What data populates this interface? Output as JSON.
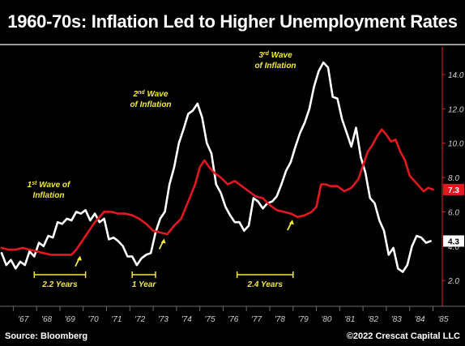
{
  "title": "1960-70s: Inflation Led to Higher Unemployment Rates",
  "footer": {
    "source": "Source: Bloomberg",
    "copyright": "©2022 Crescat Capital LLC"
  },
  "chart_data": {
    "type": "line",
    "x_labels": [
      "'67",
      "'68",
      "'69",
      "'70",
      "'71",
      "'72",
      "'73",
      "'74",
      "'75",
      "'76",
      "'77",
      "'78",
      "'79",
      "'80",
      "'81",
      "'82",
      "'83",
      "'84",
      "'85"
    ],
    "x_range": [
      1966.5,
      1985.4
    ],
    "y_ticks": [
      "2.0",
      "4.0",
      "6.0",
      "8.0",
      "10.0",
      "12.0",
      "14.0"
    ],
    "ylim": [
      0.5,
      15.6
    ],
    "series": [
      {
        "color": "#ffffff",
        "points": [
          [
            1966.5,
            3.6
          ],
          [
            1966.7,
            2.9
          ],
          [
            1966.9,
            3.2
          ],
          [
            1967.1,
            2.7
          ],
          [
            1967.3,
            3.1
          ],
          [
            1967.5,
            2.9
          ],
          [
            1967.7,
            3.7
          ],
          [
            1967.9,
            3.4
          ],
          [
            1968.1,
            4.2
          ],
          [
            1968.3,
            4.0
          ],
          [
            1968.5,
            4.6
          ],
          [
            1968.7,
            4.5
          ],
          [
            1968.9,
            5.4
          ],
          [
            1969.1,
            5.3
          ],
          [
            1969.3,
            5.6
          ],
          [
            1969.5,
            5.5
          ],
          [
            1969.7,
            6.0
          ],
          [
            1969.9,
            5.9
          ],
          [
            1970.1,
            6.1
          ],
          [
            1970.3,
            5.5
          ],
          [
            1970.5,
            5.9
          ],
          [
            1970.7,
            5.4
          ],
          [
            1970.9,
            5.6
          ],
          [
            1971.1,
            4.4
          ],
          [
            1971.3,
            4.5
          ],
          [
            1971.5,
            4.3
          ],
          [
            1971.7,
            4.0
          ],
          [
            1971.9,
            3.4
          ],
          [
            1972.1,
            3.4
          ],
          [
            1972.3,
            2.9
          ],
          [
            1972.5,
            3.3
          ],
          [
            1972.7,
            3.5
          ],
          [
            1972.9,
            3.6
          ],
          [
            1973.1,
            4.8
          ],
          [
            1973.3,
            5.6
          ],
          [
            1973.5,
            6.0
          ],
          [
            1973.7,
            7.6
          ],
          [
            1973.9,
            8.6
          ],
          [
            1974.1,
            10.0
          ],
          [
            1974.3,
            10.8
          ],
          [
            1974.5,
            11.7
          ],
          [
            1974.7,
            11.9
          ],
          [
            1974.9,
            12.3
          ],
          [
            1975.1,
            11.5
          ],
          [
            1975.3,
            10.0
          ],
          [
            1975.5,
            9.4
          ],
          [
            1975.7,
            7.6
          ],
          [
            1975.9,
            7.1
          ],
          [
            1976.1,
            6.3
          ],
          [
            1976.3,
            5.8
          ],
          [
            1976.5,
            5.4
          ],
          [
            1976.7,
            5.4
          ],
          [
            1976.9,
            4.9
          ],
          [
            1977.1,
            5.2
          ],
          [
            1977.3,
            6.8
          ],
          [
            1977.5,
            6.6
          ],
          [
            1977.7,
            6.2
          ],
          [
            1977.9,
            6.5
          ],
          [
            1978.1,
            6.6
          ],
          [
            1978.3,
            6.9
          ],
          [
            1978.5,
            7.6
          ],
          [
            1978.7,
            8.4
          ],
          [
            1978.9,
            8.9
          ],
          [
            1979.1,
            9.8
          ],
          [
            1979.3,
            10.6
          ],
          [
            1979.5,
            11.2
          ],
          [
            1979.7,
            12.0
          ],
          [
            1979.9,
            13.3
          ],
          [
            1980.1,
            14.2
          ],
          [
            1980.3,
            14.7
          ],
          [
            1980.5,
            14.4
          ],
          [
            1980.7,
            12.7
          ],
          [
            1980.9,
            12.6
          ],
          [
            1981.1,
            11.4
          ],
          [
            1981.3,
            10.6
          ],
          [
            1981.5,
            9.8
          ],
          [
            1981.7,
            10.9
          ],
          [
            1981.9,
            9.2
          ],
          [
            1982.1,
            8.3
          ],
          [
            1982.3,
            6.8
          ],
          [
            1982.5,
            6.5
          ],
          [
            1982.7,
            5.5
          ],
          [
            1982.9,
            4.9
          ],
          [
            1983.1,
            3.5
          ],
          [
            1983.3,
            3.9
          ],
          [
            1983.5,
            2.7
          ],
          [
            1983.7,
            2.5
          ],
          [
            1983.9,
            2.9
          ],
          [
            1984.1,
            4.0
          ],
          [
            1984.3,
            4.6
          ],
          [
            1984.5,
            4.5
          ],
          [
            1984.7,
            4.2
          ],
          [
            1984.9,
            4.3
          ]
        ]
      },
      {
        "color": "#e3181f",
        "points": [
          [
            1966.5,
            3.9
          ],
          [
            1966.8,
            3.8
          ],
          [
            1967.1,
            3.8
          ],
          [
            1967.4,
            3.9
          ],
          [
            1967.7,
            3.8
          ],
          [
            1968.0,
            3.7
          ],
          [
            1968.3,
            3.6
          ],
          [
            1968.6,
            3.5
          ],
          [
            1968.9,
            3.5
          ],
          [
            1969.2,
            3.5
          ],
          [
            1969.5,
            3.5
          ],
          [
            1969.7,
            3.8
          ],
          [
            1969.9,
            4.2
          ],
          [
            1970.1,
            4.6
          ],
          [
            1970.3,
            5.0
          ],
          [
            1970.5,
            5.4
          ],
          [
            1970.7,
            5.7
          ],
          [
            1970.9,
            6.0
          ],
          [
            1971.2,
            6.0
          ],
          [
            1971.5,
            5.9
          ],
          [
            1971.8,
            5.9
          ],
          [
            1972.1,
            5.8
          ],
          [
            1972.4,
            5.6
          ],
          [
            1972.7,
            5.3
          ],
          [
            1973.0,
            4.9
          ],
          [
            1973.3,
            4.8
          ],
          [
            1973.6,
            4.7
          ],
          [
            1973.9,
            5.2
          ],
          [
            1974.2,
            5.6
          ],
          [
            1974.5,
            6.6
          ],
          [
            1974.8,
            7.6
          ],
          [
            1975.0,
            8.6
          ],
          [
            1975.2,
            9.0
          ],
          [
            1975.4,
            8.6
          ],
          [
            1975.6,
            8.3
          ],
          [
            1975.9,
            8.0
          ],
          [
            1976.2,
            7.6
          ],
          [
            1976.5,
            7.8
          ],
          [
            1976.8,
            7.5
          ],
          [
            1977.1,
            7.2
          ],
          [
            1977.4,
            6.9
          ],
          [
            1977.7,
            6.8
          ],
          [
            1978.0,
            6.4
          ],
          [
            1978.3,
            6.1
          ],
          [
            1978.6,
            6.0
          ],
          [
            1978.9,
            5.9
          ],
          [
            1979.2,
            5.7
          ],
          [
            1979.5,
            5.8
          ],
          [
            1979.8,
            6.0
          ],
          [
            1980.0,
            6.3
          ],
          [
            1980.2,
            7.6
          ],
          [
            1980.4,
            7.6
          ],
          [
            1980.6,
            7.5
          ],
          [
            1980.9,
            7.5
          ],
          [
            1981.2,
            7.2
          ],
          [
            1981.5,
            7.4
          ],
          [
            1981.8,
            7.9
          ],
          [
            1982.0,
            8.7
          ],
          [
            1982.2,
            9.5
          ],
          [
            1982.4,
            9.9
          ],
          [
            1982.6,
            10.4
          ],
          [
            1982.8,
            10.8
          ],
          [
            1983.0,
            10.5
          ],
          [
            1983.2,
            10.1
          ],
          [
            1983.4,
            10.2
          ],
          [
            1983.6,
            9.5
          ],
          [
            1983.8,
            9.0
          ],
          [
            1984.0,
            8.1
          ],
          [
            1984.2,
            7.8
          ],
          [
            1984.4,
            7.5
          ],
          [
            1984.6,
            7.2
          ],
          [
            1984.8,
            7.4
          ],
          [
            1985.0,
            7.3
          ]
        ]
      }
    ],
    "end_badges": [
      {
        "label": "7.3",
        "value": 7.3,
        "style": "red"
      },
      {
        "label": "4.3",
        "value": 4.3,
        "style": "white"
      }
    ],
    "annotations": [
      {
        "lines": [
          "1st Wave of",
          "Inflation"
        ],
        "superscript_after": "st"
      },
      {
        "lines": [
          "2nd Wave",
          "of Inflation"
        ]
      },
      {
        "lines": [
          "3rd Wave",
          "of Inflation"
        ]
      }
    ],
    "wave_labels": {
      "wave1_line1_pre": "1",
      "wave1_line1_sup": "st",
      "wave1_line1_post": " Wave of",
      "wave1_line2": "Inflation",
      "wave2_line1_pre": "2",
      "wave2_line1_sup": "nd",
      "wave2_line1_post": " Wave",
      "wave2_line2": "of Inflation",
      "wave3_line1_pre": "3",
      "wave3_line1_sup": "rd",
      "wave3_line1_post": " Wave",
      "wave3_line2": "of Inflation"
    },
    "lags": [
      {
        "label": "2.2 Years",
        "from": 1967.9,
        "to": 1970.1
      },
      {
        "label": "1 Year",
        "from": 1972.1,
        "to": 1973.1
      },
      {
        "label": "2.4 Years",
        "from": 1976.6,
        "to": 1979.0
      }
    ],
    "arrows": [
      {
        "x": 1969.8,
        "y": 3.3
      },
      {
        "x": 1973.4,
        "y": 4.3
      },
      {
        "x": 1978.9,
        "y": 5.4
      }
    ],
    "grid": false
  }
}
